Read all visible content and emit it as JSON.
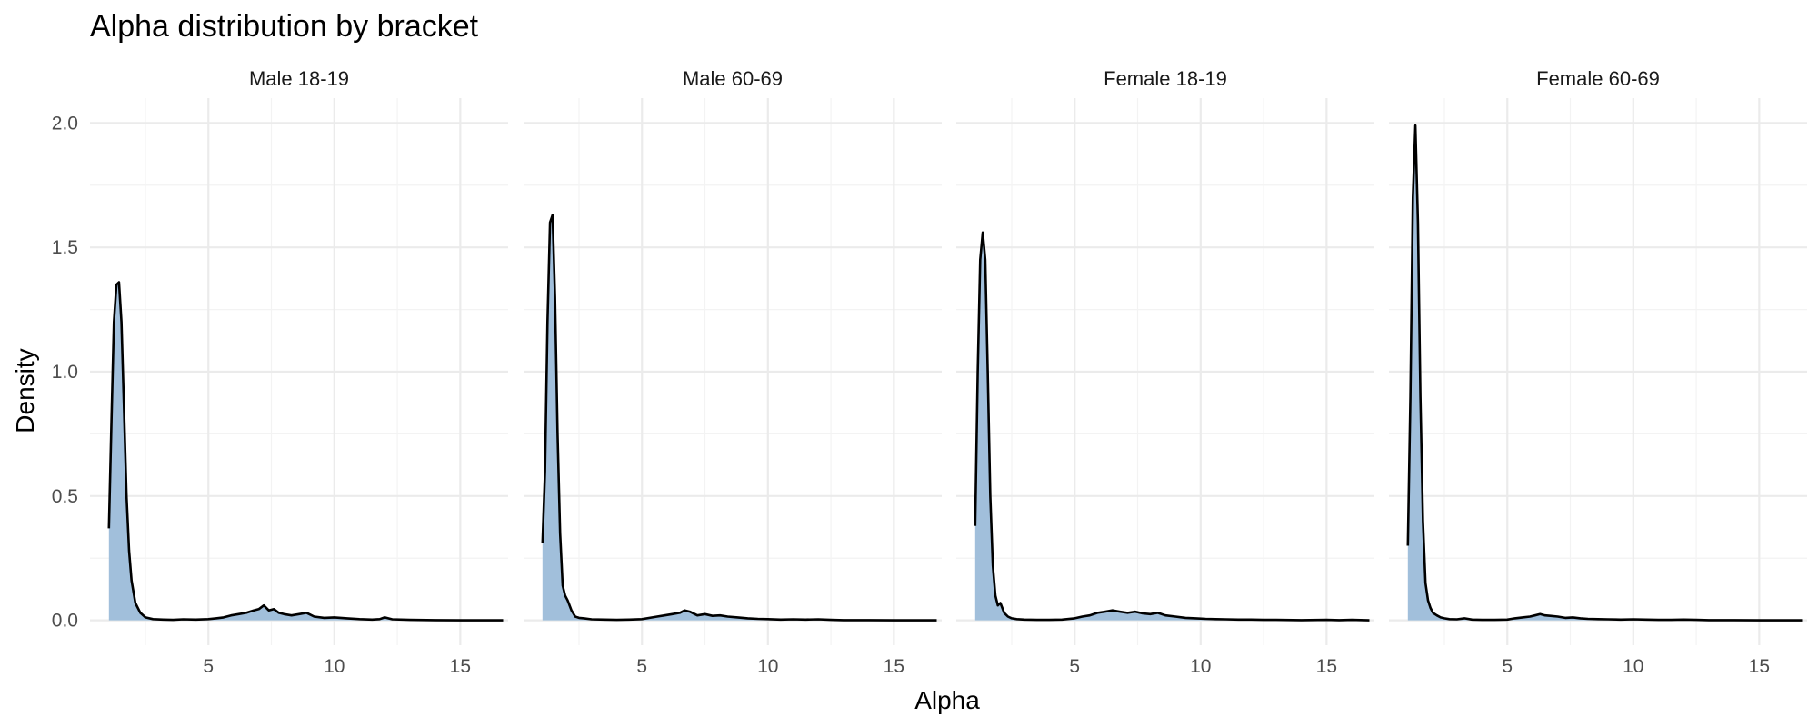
{
  "chart_data": {
    "type": "area",
    "title": "Alpha distribution by bracket",
    "xlabel": "Alpha",
    "ylabel": "Density",
    "xlim": [
      0.3,
      16.9
    ],
    "ylim": [
      -0.1,
      2.1
    ],
    "x_ticks": [
      5,
      10,
      15
    ],
    "y_ticks": [
      0.0,
      0.5,
      1.0,
      1.5,
      2.0
    ],
    "x_tick_labels": [
      "5",
      "10",
      "15"
    ],
    "y_tick_labels": [
      "0.0",
      "0.5",
      "1.0",
      "1.5",
      "2.0"
    ],
    "grid": true,
    "fill_color": "#a1bfdb",
    "line_color": "#000000",
    "panels": [
      {
        "name": "Male 18-19",
        "x": [
          1.05,
          1.15,
          1.25,
          1.35,
          1.45,
          1.55,
          1.65,
          1.75,
          1.85,
          1.95,
          2.1,
          2.3,
          2.5,
          2.8,
          3.2,
          3.6,
          4.0,
          4.5,
          5.0,
          5.3,
          5.6,
          5.9,
          6.2,
          6.5,
          6.8,
          7.0,
          7.2,
          7.4,
          7.6,
          7.8,
          8.0,
          8.3,
          8.6,
          8.9,
          9.2,
          9.6,
          10.0,
          10.5,
          11.0,
          11.5,
          11.8,
          12.0,
          12.3,
          13.0,
          14.0,
          15.0,
          16.0,
          16.7
        ],
        "y": [
          0.37,
          0.8,
          1.2,
          1.35,
          1.36,
          1.2,
          0.85,
          0.5,
          0.28,
          0.16,
          0.07,
          0.03,
          0.012,
          0.005,
          0.003,
          0.002,
          0.004,
          0.003,
          0.005,
          0.008,
          0.012,
          0.02,
          0.025,
          0.03,
          0.04,
          0.045,
          0.06,
          0.04,
          0.045,
          0.03,
          0.025,
          0.02,
          0.025,
          0.03,
          0.015,
          0.01,
          0.012,
          0.008,
          0.005,
          0.003,
          0.005,
          0.012,
          0.004,
          0.002,
          0.001,
          0.0,
          0.0,
          0.0
        ]
      },
      {
        "name": "Male 60-69",
        "x": [
          1.05,
          1.15,
          1.25,
          1.35,
          1.45,
          1.55,
          1.65,
          1.75,
          1.85,
          1.95,
          2.05,
          2.2,
          2.35,
          2.5,
          2.7,
          3.0,
          3.5,
          4.0,
          4.5,
          5.0,
          5.3,
          5.6,
          5.9,
          6.2,
          6.5,
          6.7,
          6.9,
          7.2,
          7.5,
          7.8,
          8.1,
          8.4,
          8.8,
          9.2,
          9.6,
          10.0,
          10.5,
          11.0,
          11.5,
          12.0,
          12.5,
          13.0,
          14.0,
          15.0,
          16.0,
          16.7
        ],
        "y": [
          0.31,
          0.6,
          1.2,
          1.6,
          1.63,
          1.3,
          0.75,
          0.35,
          0.14,
          0.1,
          0.08,
          0.04,
          0.015,
          0.01,
          0.008,
          0.004,
          0.003,
          0.002,
          0.003,
          0.005,
          0.01,
          0.015,
          0.02,
          0.025,
          0.03,
          0.04,
          0.035,
          0.02,
          0.025,
          0.018,
          0.02,
          0.015,
          0.012,
          0.008,
          0.006,
          0.005,
          0.003,
          0.004,
          0.003,
          0.004,
          0.002,
          0.001,
          0.001,
          0.0,
          0.0,
          0.0
        ]
      },
      {
        "name": "Female 18-19",
        "x": [
          1.05,
          1.15,
          1.25,
          1.35,
          1.45,
          1.55,
          1.65,
          1.75,
          1.85,
          1.95,
          2.05,
          2.2,
          2.35,
          2.5,
          2.7,
          3.0,
          3.5,
          4.0,
          4.5,
          5.0,
          5.3,
          5.6,
          5.9,
          6.2,
          6.5,
          6.8,
          7.1,
          7.4,
          7.7,
          8.0,
          8.3,
          8.6,
          9.0,
          9.4,
          9.8,
          10.2,
          10.6,
          11.0,
          11.5,
          12.0,
          12.5,
          13.0,
          14.0,
          15.0,
          15.5,
          16.0,
          16.7
        ],
        "y": [
          0.38,
          1.0,
          1.45,
          1.56,
          1.45,
          1.0,
          0.5,
          0.22,
          0.1,
          0.06,
          0.07,
          0.03,
          0.015,
          0.008,
          0.005,
          0.003,
          0.002,
          0.002,
          0.003,
          0.008,
          0.015,
          0.02,
          0.03,
          0.035,
          0.04,
          0.035,
          0.03,
          0.035,
          0.028,
          0.025,
          0.03,
          0.02,
          0.015,
          0.01,
          0.008,
          0.006,
          0.005,
          0.004,
          0.003,
          0.003,
          0.002,
          0.002,
          0.001,
          0.002,
          0.001,
          0.002,
          0.0
        ]
      },
      {
        "name": "Female 60-69",
        "x": [
          1.05,
          1.15,
          1.25,
          1.35,
          1.45,
          1.55,
          1.65,
          1.75,
          1.85,
          1.95,
          2.05,
          2.2,
          2.35,
          2.5,
          2.7,
          3.0,
          3.3,
          3.6,
          4.0,
          4.5,
          5.0,
          5.3,
          5.6,
          5.9,
          6.1,
          6.3,
          6.5,
          6.7,
          7.0,
          7.3,
          7.6,
          7.9,
          8.2,
          8.6,
          9.0,
          9.5,
          10.0,
          10.5,
          11.0,
          11.5,
          12.0,
          12.5,
          13.0,
          14.0,
          15.0,
          16.0,
          16.7
        ],
        "y": [
          0.3,
          0.9,
          1.7,
          1.99,
          1.6,
          0.9,
          0.4,
          0.15,
          0.08,
          0.05,
          0.03,
          0.02,
          0.012,
          0.008,
          0.005,
          0.004,
          0.008,
          0.003,
          0.002,
          0.002,
          0.003,
          0.008,
          0.012,
          0.015,
          0.02,
          0.025,
          0.02,
          0.018,
          0.015,
          0.01,
          0.012,
          0.008,
          0.006,
          0.005,
          0.004,
          0.003,
          0.004,
          0.003,
          0.002,
          0.002,
          0.003,
          0.002,
          0.001,
          0.001,
          0.0,
          0.0,
          0.0
        ]
      }
    ]
  }
}
